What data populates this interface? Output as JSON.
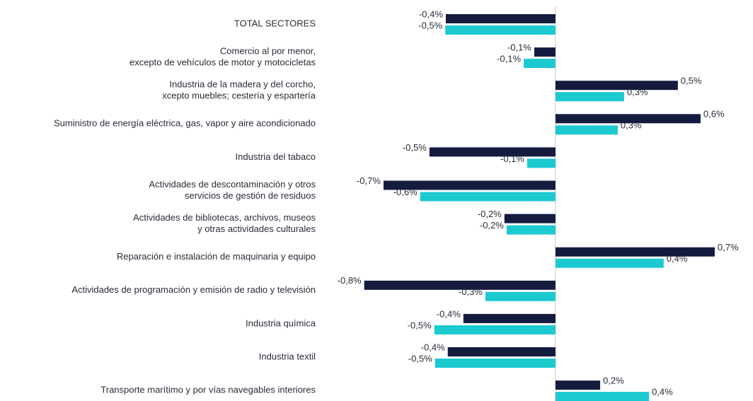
{
  "chart_data": {
    "type": "hbar",
    "categories": [
      [
        "TOTAL SECTORES"
      ],
      [
        "Comercio al por menor,",
        "excepto de vehículos de motor y motocicletas"
      ],
      [
        "Industria de la madera y del corcho,",
        "xcepto muebles; cestería y espartería"
      ],
      [
        "Suministro de energía eléctrica, gas, vapor y aire acondicionado"
      ],
      [
        "Industria del tabaco"
      ],
      [
        "Actividades de descontaminación y otros",
        "servicios de gestión de residuos"
      ],
      [
        "Actividades de bibliotecas, archivos, museos",
        "y otras actividades culturales"
      ],
      [
        "Reparación e instalación de maquinaria y equipo"
      ],
      [
        "Actividades de programación y emisión de radio y televisión"
      ],
      [
        "Industria química"
      ],
      [
        "Industria textil"
      ],
      [
        "Transporte marítimo y por vías navegables interiores"
      ]
    ],
    "series": [
      {
        "color": "#141b3f",
        "values": [
          -0.449,
          -0.087,
          0.501,
          0.594,
          -0.516,
          -0.704,
          -0.209,
          0.652,
          -0.783,
          -0.377,
          -0.441,
          0.183
        ],
        "value_labels": [
          "-0,4%",
          "-0,1%",
          "0,5%",
          "0,6%",
          "-0,5%",
          "-0,7%",
          "-0,2%",
          "0,7%",
          "-0,8%",
          "-0,4%",
          "-0,4%",
          "0,2%"
        ]
      },
      {
        "color": "#1cc9cf",
        "values": [
          -0.451,
          -0.13,
          0.281,
          0.255,
          -0.116,
          -0.554,
          -0.2,
          0.443,
          -0.287,
          -0.496,
          -0.493,
          0.383
        ],
        "value_labels": [
          "-0,5%",
          "-0,1%",
          "0,3%",
          "0,3%",
          "-0,1%",
          "-0,6%",
          "-0,2%",
          "0,4%",
          "-0,3%",
          "-0,5%",
          "-0,5%",
          "0,4%"
        ]
      }
    ],
    "xlim": [
      -0.95,
      0.8
    ]
  }
}
